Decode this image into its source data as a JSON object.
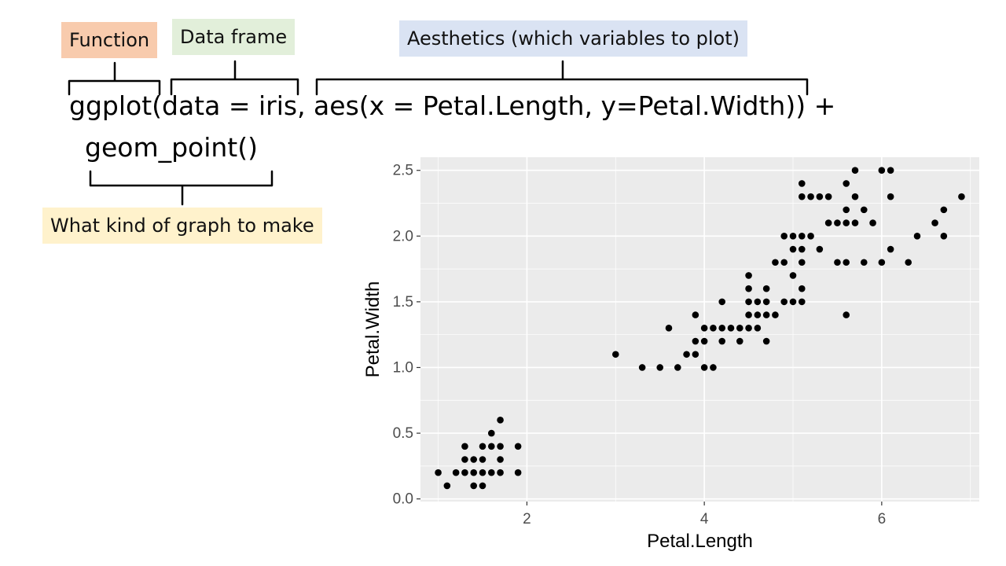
{
  "annotations": {
    "function": {
      "label": "Function",
      "color": "#F8CBAD"
    },
    "data_frame": {
      "label": "Data frame",
      "color": "#E2EFDA"
    },
    "aesthetics": {
      "label": "Aesthetics (which variables to plot)",
      "color": "#DAE3F3"
    },
    "geom": {
      "label": "What kind of graph to make",
      "color": "#FFF2CC"
    }
  },
  "code": {
    "line1": "ggplot(data = iris, aes(x = Petal.Length, y=Petal.Width)) +",
    "line2": "geom_point()"
  },
  "colors": {
    "panel_bg": "#EBEBEB",
    "grid": "#FFFFFF",
    "point": "#000000",
    "tick_text": "#4D4D4D"
  },
  "chart_data": {
    "type": "scatter",
    "title": "",
    "xlabel": "Petal.Length",
    "ylabel": "Petal.Width",
    "xlim": [
      0.8,
      7.1
    ],
    "ylim": [
      -0.02,
      2.6
    ],
    "x_ticks": [
      2,
      4,
      6
    ],
    "x_tick_labels": [
      "2",
      "4",
      "6"
    ],
    "y_ticks": [
      0.0,
      0.5,
      1.0,
      1.5,
      2.0,
      2.5
    ],
    "y_tick_labels": [
      "0.0",
      "0.5",
      "1.0",
      "1.5",
      "2.0",
      "2.5"
    ],
    "grid": true,
    "points": [
      [
        1.1,
        0.1
      ],
      [
        1.4,
        0.1
      ],
      [
        1.5,
        0.1
      ],
      [
        1.0,
        0.2
      ],
      [
        1.2,
        0.2
      ],
      [
        1.3,
        0.2
      ],
      [
        1.4,
        0.2
      ],
      [
        1.5,
        0.2
      ],
      [
        1.6,
        0.2
      ],
      [
        1.7,
        0.2
      ],
      [
        1.9,
        0.2
      ],
      [
        1.3,
        0.3
      ],
      [
        1.4,
        0.3
      ],
      [
        1.5,
        0.3
      ],
      [
        1.7,
        0.3
      ],
      [
        1.3,
        0.4
      ],
      [
        1.5,
        0.4
      ],
      [
        1.6,
        0.4
      ],
      [
        1.7,
        0.4
      ],
      [
        1.9,
        0.4
      ],
      [
        1.6,
        0.5
      ],
      [
        1.7,
        0.6
      ],
      [
        3.0,
        1.1
      ],
      [
        3.3,
        1.0
      ],
      [
        3.5,
        1.0
      ],
      [
        3.7,
        1.0
      ],
      [
        3.9,
        1.1
      ],
      [
        3.8,
        1.1
      ],
      [
        4.0,
        1.0
      ],
      [
        4.1,
        1.0
      ],
      [
        3.6,
        1.3
      ],
      [
        3.9,
        1.2
      ],
      [
        4.0,
        1.2
      ],
      [
        3.9,
        1.4
      ],
      [
        4.0,
        1.3
      ],
      [
        4.1,
        1.3
      ],
      [
        4.2,
        1.3
      ],
      [
        4.3,
        1.3
      ],
      [
        4.4,
        1.3
      ],
      [
        4.5,
        1.3
      ],
      [
        4.6,
        1.3
      ],
      [
        4.7,
        1.2
      ],
      [
        4.2,
        1.2
      ],
      [
        4.4,
        1.2
      ],
      [
        4.5,
        1.4
      ],
      [
        4.6,
        1.4
      ],
      [
        4.7,
        1.4
      ],
      [
        4.8,
        1.4
      ],
      [
        4.2,
        1.5
      ],
      [
        4.5,
        1.5
      ],
      [
        4.6,
        1.5
      ],
      [
        4.7,
        1.5
      ],
      [
        4.9,
        1.5
      ],
      [
        5.0,
        1.5
      ],
      [
        5.1,
        1.5
      ],
      [
        4.5,
        1.6
      ],
      [
        4.7,
        1.6
      ],
      [
        5.1,
        1.6
      ],
      [
        4.5,
        1.7
      ],
      [
        5.0,
        1.7
      ],
      [
        4.8,
        1.8
      ],
      [
        4.9,
        1.8
      ],
      [
        5.1,
        1.8
      ],
      [
        5.5,
        1.8
      ],
      [
        5.6,
        1.8
      ],
      [
        5.8,
        1.8
      ],
      [
        6.0,
        1.8
      ],
      [
        6.3,
        1.8
      ],
      [
        5.0,
        1.9
      ],
      [
        5.1,
        1.9
      ],
      [
        5.3,
        1.9
      ],
      [
        6.1,
        1.9
      ],
      [
        4.9,
        2.0
      ],
      [
        5.0,
        2.0
      ],
      [
        5.1,
        2.0
      ],
      [
        5.2,
        2.0
      ],
      [
        6.4,
        2.0
      ],
      [
        6.7,
        2.0
      ],
      [
        5.4,
        2.1
      ],
      [
        5.5,
        2.1
      ],
      [
        5.6,
        2.1
      ],
      [
        5.7,
        2.1
      ],
      [
        5.9,
        2.1
      ],
      [
        6.6,
        2.1
      ],
      [
        5.6,
        2.2
      ],
      [
        5.8,
        2.2
      ],
      [
        6.7,
        2.2
      ],
      [
        5.1,
        2.3
      ],
      [
        5.2,
        2.3
      ],
      [
        5.3,
        2.3
      ],
      [
        5.4,
        2.3
      ],
      [
        5.7,
        2.3
      ],
      [
        6.1,
        2.3
      ],
      [
        6.9,
        2.3
      ],
      [
        5.1,
        2.4
      ],
      [
        5.6,
        2.4
      ],
      [
        5.7,
        2.5
      ],
      [
        6.0,
        2.5
      ],
      [
        6.1,
        2.5
      ],
      [
        5.6,
        1.4
      ]
    ]
  }
}
